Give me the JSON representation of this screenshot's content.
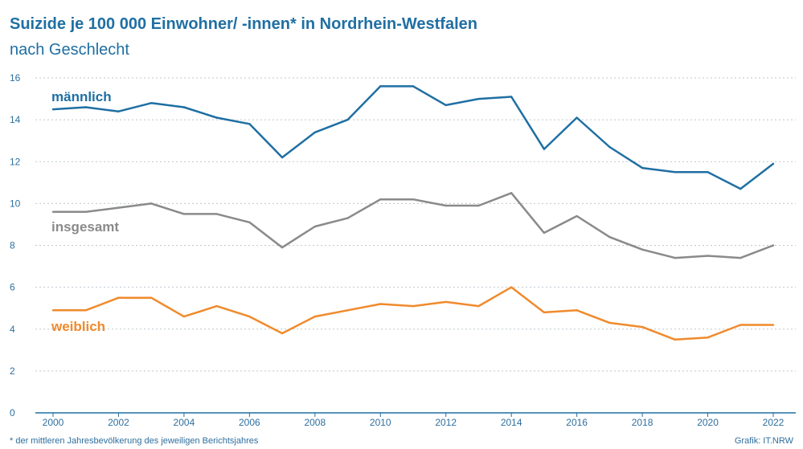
{
  "title": "Suizide je 100 000 Einwohner/ -innen* in Nordrhein-Westfalen",
  "subtitle": "nach Geschlecht",
  "footnote": "* der mittleren Jahresbevölkerung des jeweiligen Berichtsjahres",
  "source": "Grafik: IT.NRW",
  "chart_data": {
    "type": "line",
    "title": "Suizide je 100 000 Einwohner/ -innen* in Nordrhein-Westfalen",
    "subtitle": "nach Geschlecht",
    "x": [
      2000,
      2001,
      2002,
      2003,
      2004,
      2005,
      2006,
      2007,
      2008,
      2009,
      2010,
      2011,
      2012,
      2013,
      2014,
      2015,
      2016,
      2017,
      2018,
      2019,
      2020,
      2021,
      2022
    ],
    "xticks": [
      "2000",
      "2002",
      "2004",
      "2006",
      "2008",
      "2010",
      "2012",
      "2014",
      "2016",
      "2018",
      "2020",
      "2022"
    ],
    "yticks": [
      "0",
      "2",
      "4",
      "6",
      "8",
      "10",
      "12",
      "14",
      "16"
    ],
    "ylim": [
      0,
      16
    ],
    "grid": true,
    "series": [
      {
        "name": "männlich",
        "color": "#1f6fa3",
        "values": [
          14.5,
          14.6,
          14.4,
          14.8,
          14.6,
          14.1,
          13.8,
          12.2,
          13.4,
          14.0,
          15.6,
          15.6,
          14.7,
          15.0,
          15.1,
          12.6,
          14.1,
          12.7,
          11.7,
          11.5,
          11.5,
          10.7,
          11.9
        ]
      },
      {
        "name": "insgesamt",
        "color": "#8a8a8a",
        "values": [
          9.6,
          9.6,
          9.8,
          10.0,
          9.5,
          9.5,
          9.1,
          7.9,
          8.9,
          9.3,
          10.2,
          10.2,
          9.9,
          9.9,
          10.5,
          8.6,
          9.4,
          8.4,
          7.8,
          7.4,
          7.5,
          7.4,
          8.0
        ]
      },
      {
        "name": "weiblich",
        "color": "#f08a2c",
        "values": [
          4.9,
          4.9,
          5.5,
          5.5,
          4.6,
          5.1,
          4.6,
          3.8,
          4.6,
          4.9,
          5.2,
          5.1,
          5.3,
          5.1,
          6.0,
          4.8,
          4.9,
          4.3,
          4.1,
          3.5,
          3.6,
          4.2,
          4.2
        ]
      }
    ]
  }
}
